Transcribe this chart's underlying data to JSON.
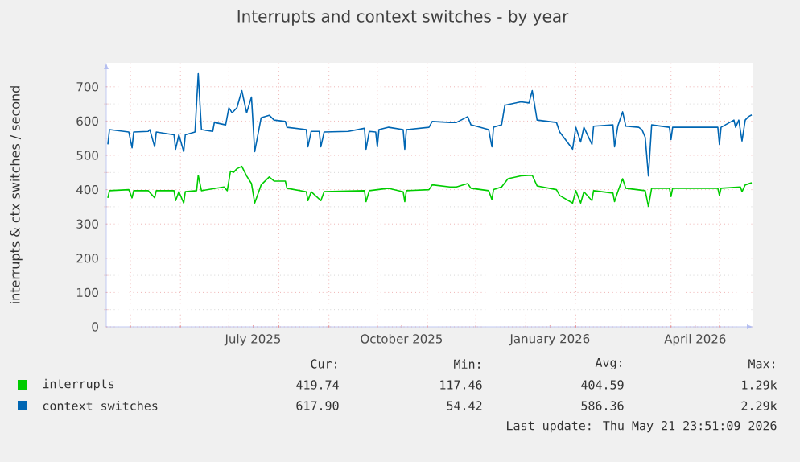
{
  "chart_data": {
    "type": "line",
    "title": "Interrupts and context switches - by year",
    "ylabel": "interrupts & ctx switches / second",
    "xlim": [
      "2025-04-16",
      "2026-05-22"
    ],
    "ylim": [
      0,
      770
    ],
    "yticks": [
      0,
      100,
      200,
      300,
      400,
      500,
      600,
      700
    ],
    "xticks": [
      {
        "value": "2025-05-01",
        "label": null
      },
      {
        "value": "2025-06-01",
        "label": null
      },
      {
        "value": "2025-07-01",
        "label": null
      },
      {
        "value": "2025-07-16",
        "label": "July 2025"
      },
      {
        "value": "2025-08-01",
        "label": null
      },
      {
        "value": "2025-09-01",
        "label": null
      },
      {
        "value": "2025-10-01",
        "label": null
      },
      {
        "value": "2025-10-16",
        "label": "October 2025"
      },
      {
        "value": "2025-11-01",
        "label": null
      },
      {
        "value": "2025-12-01",
        "label": null
      },
      {
        "value": "2026-01-01",
        "label": null
      },
      {
        "value": "2026-01-16",
        "label": "January 2026"
      },
      {
        "value": "2026-02-01",
        "label": null
      },
      {
        "value": "2026-03-01",
        "label": null
      },
      {
        "value": "2026-04-01",
        "label": null
      },
      {
        "value": "2026-04-16",
        "label": "April 2026"
      },
      {
        "value": "2026-05-01",
        "label": null
      }
    ],
    "grid": true,
    "legend": "bottom",
    "series": [
      {
        "name": "interrupts",
        "color": "#00cc00",
        "x": [
          "2025-04-17",
          "2025-04-18",
          "2025-04-30",
          "2025-05-02",
          "2025-05-03",
          "2025-05-12",
          "2025-05-16",
          "2025-05-17",
          "2025-05-28",
          "2025-05-29",
          "2025-05-31",
          "2025-06-03",
          "2025-06-04",
          "2025-06-11",
          "2025-06-12",
          "2025-06-14",
          "2025-06-28",
          "2025-06-30",
          "2025-07-02",
          "2025-07-04",
          "2025-07-06",
          "2025-07-09",
          "2025-07-12",
          "2025-07-15",
          "2025-07-17",
          "2025-07-21",
          "2025-07-26",
          "2025-07-29",
          "2025-08-05",
          "2025-08-06",
          "2025-08-18",
          "2025-08-19",
          "2025-08-21",
          "2025-08-27",
          "2025-08-29",
          "2025-09-23",
          "2025-09-24",
          "2025-09-26",
          "2025-10-08",
          "2025-10-17",
          "2025-10-18",
          "2025-10-19",
          "2025-11-02",
          "2025-11-04",
          "2025-11-15",
          "2025-11-19",
          "2025-11-26",
          "2025-11-28",
          "2025-12-09",
          "2025-12-11",
          "2025-12-12",
          "2025-12-17",
          "2025-12-21",
          "2025-12-29",
          "2026-01-05",
          "2026-01-08",
          "2026-01-20",
          "2026-01-22",
          "2026-01-30",
          "2026-02-01",
          "2026-02-04",
          "2026-02-06",
          "2026-02-11",
          "2026-02-12",
          "2026-02-24",
          "2026-02-25",
          "2026-02-27",
          "2026-03-02",
          "2026-03-04",
          "2026-03-16",
          "2026-03-18",
          "2026-03-20",
          "2026-03-31",
          "2026-04-01",
          "2026-04-02",
          "2026-04-30",
          "2026-05-01",
          "2026-05-02",
          "2026-05-14",
          "2026-05-15",
          "2026-05-17",
          "2026-05-19",
          "2026-05-21"
        ],
        "values": [
          376,
          397,
          400,
          376,
          397,
          397,
          376,
          397,
          397,
          368,
          394,
          361,
          394,
          397,
          442,
          397,
          408,
          397,
          454,
          451,
          461,
          468,
          440,
          418,
          361,
          414,
          437,
          425,
          425,
          404,
          394,
          368,
          394,
          368,
          394,
          397,
          365,
          397,
          404,
          394,
          365,
          397,
          400,
          414,
          408,
          408,
          418,
          404,
          397,
          371,
          400,
          408,
          432,
          440,
          442,
          411,
          400,
          383,
          361,
          397,
          361,
          394,
          368,
          397,
          390,
          365,
          394,
          432,
          404,
          397,
          351,
          404,
          404,
          380,
          404,
          404,
          383,
          404,
          408,
          394,
          414,
          417,
          420
        ]
      },
      {
        "name": "context switches",
        "color": "#0066b3",
        "x": [
          "2025-04-17",
          "2025-04-18",
          "2025-04-30",
          "2025-05-02",
          "2025-05-03",
          "2025-05-12",
          "2025-05-13",
          "2025-05-16",
          "2025-05-17",
          "2025-05-28",
          "2025-05-29",
          "2025-05-31",
          "2025-06-03",
          "2025-06-04",
          "2025-06-10",
          "2025-06-12",
          "2025-06-14",
          "2025-06-21",
          "2025-06-22",
          "2025-06-29",
          "2025-07-01",
          "2025-07-03",
          "2025-07-06",
          "2025-07-09",
          "2025-07-12",
          "2025-07-15",
          "2025-07-17",
          "2025-07-21",
          "2025-07-26",
          "2025-07-29",
          "2025-08-05",
          "2025-08-06",
          "2025-08-18",
          "2025-08-19",
          "2025-08-21",
          "2025-08-26",
          "2025-08-27",
          "2025-08-29",
          "2025-09-13",
          "2025-09-23",
          "2025-09-24",
          "2025-09-26",
          "2025-09-30",
          "2025-10-01",
          "2025-10-02",
          "2025-10-08",
          "2025-10-17",
          "2025-10-18",
          "2025-10-19",
          "2025-11-02",
          "2025-11-04",
          "2025-11-15",
          "2025-11-19",
          "2025-11-26",
          "2025-11-28",
          "2025-12-09",
          "2025-12-11",
          "2025-12-12",
          "2025-12-17",
          "2025-12-19",
          "2025-12-29",
          "2026-01-03",
          "2026-01-05",
          "2026-01-08",
          "2026-01-20",
          "2026-01-22",
          "2026-01-30",
          "2026-02-01",
          "2026-02-04",
          "2026-02-06",
          "2026-02-11",
          "2026-02-12",
          "2026-02-24",
          "2026-02-25",
          "2026-02-27",
          "2026-03-02",
          "2026-03-04",
          "2026-03-12",
          "2026-03-14",
          "2026-03-16",
          "2026-03-18",
          "2026-03-20",
          "2026-03-31",
          "2026-04-01",
          "2026-04-02",
          "2026-04-30",
          "2026-05-01",
          "2026-05-02",
          "2026-05-10",
          "2026-05-11",
          "2026-05-13",
          "2026-05-15",
          "2026-05-17",
          "2026-05-19",
          "2026-05-21"
        ],
        "values": [
          532,
          575,
          568,
          522,
          568,
          570,
          575,
          525,
          568,
          560,
          518,
          560,
          511,
          560,
          568,
          738,
          575,
          570,
          596,
          589,
          639,
          624,
          639,
          689,
          624,
          670,
          511,
          610,
          617,
          603,
          599,
          582,
          575,
          525,
          570,
          570,
          525,
          568,
          570,
          579,
          518,
          570,
          568,
          525,
          575,
          582,
          575,
          518,
          575,
          582,
          599,
          596,
          596,
          613,
          589,
          575,
          525,
          582,
          589,
          646,
          656,
          653,
          689,
          603,
          596,
          568,
          518,
          582,
          539,
          582,
          532,
          585,
          589,
          525,
          585,
          627,
          585,
          582,
          575,
          553,
          440,
          589,
          582,
          546,
          582,
          582,
          532,
          582,
          603,
          582,
          603,
          542,
          603,
          613,
          618
        ]
      }
    ],
    "annotations": [
      "Cur:",
      "Min:",
      "Avg:",
      "Max:",
      "419.74",
      "117.46",
      "404.59",
      "1.29k",
      "617.90",
      "54.42",
      "586.36",
      "2.29k",
      "Last update: Thu May 21 23:51:09 2026"
    ]
  }
}
